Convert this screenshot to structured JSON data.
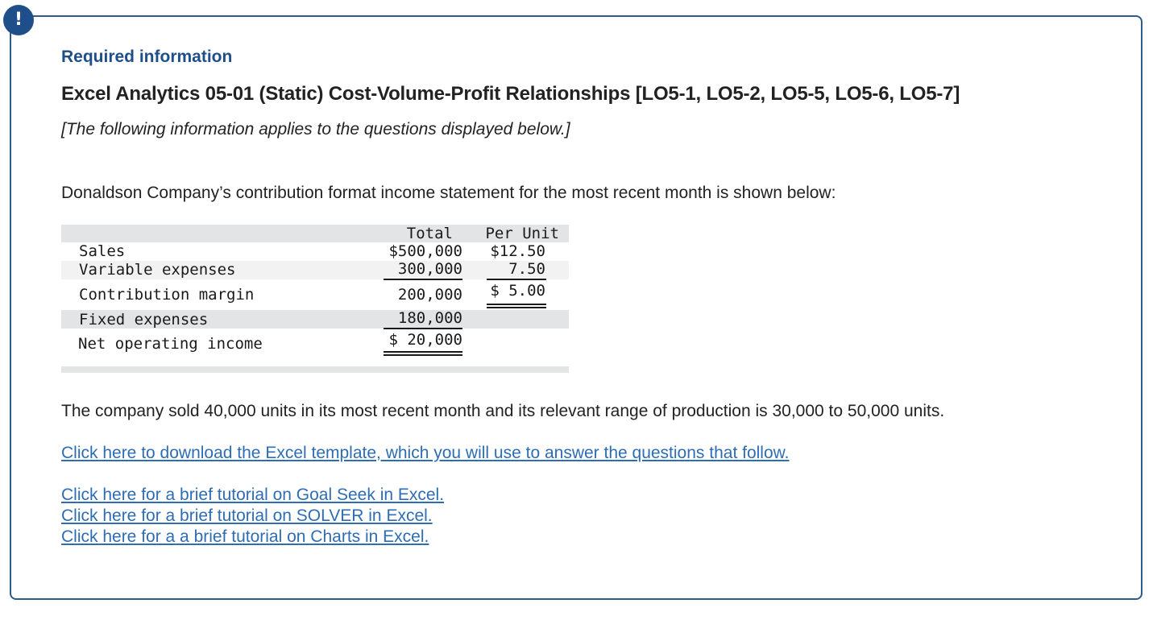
{
  "alert": {
    "symbol": "!"
  },
  "header": {
    "required_info": "Required information",
    "title": "Excel Analytics 05-01 (Static) Cost-Volume-Profit Relationships [LO5-1, LO5-2, LO5-5, LO5-6, LO5-7]",
    "subtitle": "[The following information applies to the questions displayed below.]"
  },
  "intro": "Donaldson Company’s contribution format income statement for the most recent month is shown below:",
  "statement": {
    "columns": {
      "total": "Total",
      "per_unit": "Per Unit"
    },
    "rows": [
      {
        "label": "Sales",
        "total": "$500,000",
        "per_unit": "$12.50"
      },
      {
        "label": "Variable expenses",
        "total": "300,000",
        "per_unit": "7.50"
      },
      {
        "label": "Contribution margin",
        "total": "200,000",
        "per_unit": "$ 5.00"
      },
      {
        "label": "Fixed expenses",
        "total": "180,000",
        "per_unit": ""
      },
      {
        "label": "Net operating income",
        "total": "$ 20,000",
        "per_unit": ""
      }
    ]
  },
  "facts": "The company sold 40,000 units in its most recent month and its relevant range of production is 30,000 to 50,000 units.",
  "links": {
    "excel_template": "Click here to download the Excel template, which you will use to answer the questions that follow.",
    "goal_seek": "Click here for a brief tutorial on Goal Seek in Excel.",
    "solver": "Click here for a brief tutorial on SOLVER in Excel.",
    "charts": "Click here for a a brief tutorial on Charts in Excel."
  }
}
